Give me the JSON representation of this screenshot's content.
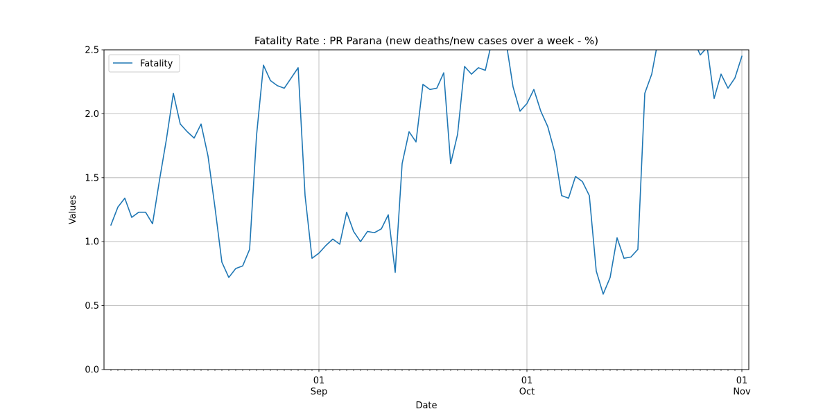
{
  "chart_data": {
    "type": "line",
    "title": "Fatality Rate : PR Parana (new deaths/new cases over a week - %)",
    "xlabel": "Date",
    "ylabel": "Values",
    "ylim": [
      0,
      2.5
    ],
    "xlim": [
      "2020-08-01",
      "2020-11-02"
    ],
    "grid": true,
    "legend_position": "top-left",
    "yticks": [
      "0.0",
      "0.5",
      "1.0",
      "1.5",
      "2.0",
      "2.5"
    ],
    "xticks": [
      {
        "date": "2020-09-01",
        "day": "01",
        "month": "Sep"
      },
      {
        "date": "2020-10-01",
        "day": "01",
        "month": "Oct"
      },
      {
        "date": "2020-11-01",
        "day": "01",
        "month": "Nov"
      }
    ],
    "series": [
      {
        "name": "Fatality",
        "color": "#1f77b4",
        "x": [
          "2020-08-02",
          "2020-08-03",
          "2020-08-04",
          "2020-08-05",
          "2020-08-06",
          "2020-08-07",
          "2020-08-08",
          "2020-08-09",
          "2020-08-10",
          "2020-08-11",
          "2020-08-12",
          "2020-08-13",
          "2020-08-14",
          "2020-08-15",
          "2020-08-16",
          "2020-08-17",
          "2020-08-18",
          "2020-08-19",
          "2020-08-20",
          "2020-08-21",
          "2020-08-22",
          "2020-08-23",
          "2020-08-24",
          "2020-08-25",
          "2020-08-26",
          "2020-08-27",
          "2020-08-28",
          "2020-08-29",
          "2020-08-30",
          "2020-08-31",
          "2020-09-01",
          "2020-09-02",
          "2020-09-03",
          "2020-09-04",
          "2020-09-05",
          "2020-09-06",
          "2020-09-07",
          "2020-09-08",
          "2020-09-09",
          "2020-09-10",
          "2020-09-11",
          "2020-09-12",
          "2020-09-13",
          "2020-09-14",
          "2020-09-15",
          "2020-09-16",
          "2020-09-17",
          "2020-09-18",
          "2020-09-19",
          "2020-09-20",
          "2020-09-21",
          "2020-09-22",
          "2020-09-23",
          "2020-09-24",
          "2020-09-25",
          "2020-09-26",
          "2020-09-27",
          "2020-09-28",
          "2020-09-29",
          "2020-09-30",
          "2020-10-01",
          "2020-10-02",
          "2020-10-03",
          "2020-10-04",
          "2020-10-05",
          "2020-10-06",
          "2020-10-07",
          "2020-10-08",
          "2020-10-09",
          "2020-10-10",
          "2020-10-11",
          "2020-10-12",
          "2020-10-13",
          "2020-10-14",
          "2020-10-15",
          "2020-10-16",
          "2020-10-17",
          "2020-10-18",
          "2020-10-19",
          "2020-10-20",
          "2020-10-21",
          "2020-10-22",
          "2020-10-23",
          "2020-10-24",
          "2020-10-25",
          "2020-10-26",
          "2020-10-27",
          "2020-10-28",
          "2020-10-29",
          "2020-10-30",
          "2020-10-31",
          "2020-11-01"
        ],
        "values": [
          1.13,
          1.27,
          1.34,
          1.19,
          1.23,
          1.23,
          1.14,
          1.48,
          1.8,
          2.16,
          1.92,
          1.86,
          1.81,
          1.92,
          1.67,
          1.27,
          0.84,
          0.72,
          0.79,
          0.81,
          0.94,
          1.83,
          2.38,
          2.26,
          2.22,
          2.2,
          2.28,
          2.36,
          1.36,
          0.87,
          0.91,
          0.97,
          1.02,
          0.98,
          1.23,
          1.08,
          1.0,
          1.08,
          1.07,
          1.1,
          1.21,
          0.76,
          1.61,
          1.86,
          1.78,
          2.23,
          2.19,
          2.2,
          2.32,
          1.61,
          1.84,
          2.37,
          2.31,
          2.36,
          2.34,
          2.58,
          2.62,
          2.56,
          2.21,
          2.02,
          2.08,
          2.19,
          2.02,
          1.9,
          1.7,
          1.36,
          1.34,
          1.51,
          1.47,
          1.36,
          0.77,
          0.59,
          0.72,
          1.03,
          0.87,
          0.88,
          0.94,
          2.16,
          2.31,
          2.6,
          2.7,
          2.72,
          2.68,
          2.61,
          2.58,
          2.46,
          2.52,
          2.12,
          2.31,
          2.2,
          2.28,
          2.45
        ]
      }
    ]
  }
}
